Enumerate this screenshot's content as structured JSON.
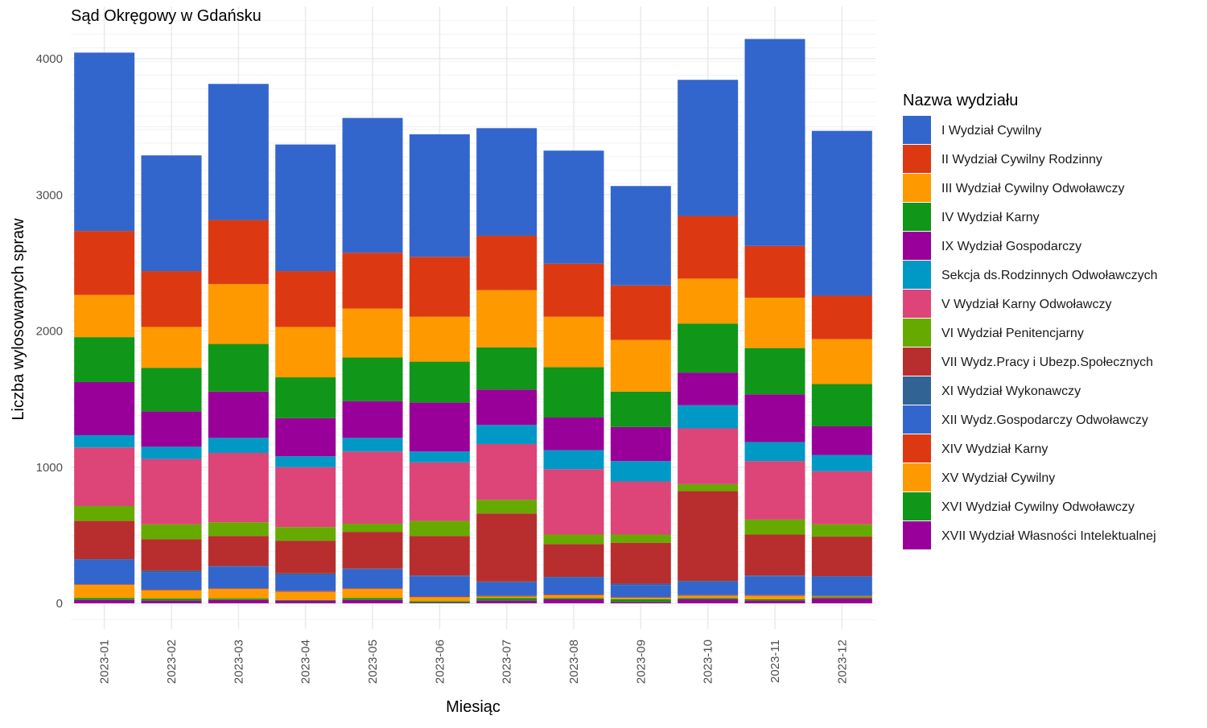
{
  "chart_data": {
    "type": "bar",
    "stacked": true,
    "title": "Sąd Okręgowy w Gdańsku",
    "xlabel": "Miesiąc",
    "ylabel": "Liczba wylosowanych spraw",
    "ylim": [
      -120,
      4300
    ],
    "y_ticks": [
      0,
      1000,
      2000,
      3000,
      4000
    ],
    "y_tick_labels": [
      "0",
      "1000",
      "2000",
      "3000",
      "4000"
    ],
    "grid": true,
    "legend_position": "right",
    "legend_title": "Nazwa wydziału",
    "categories": [
      "2023-01",
      "2023-02",
      "2023-03",
      "2023-04",
      "2023-05",
      "2023-06",
      "2023-07",
      "2023-08",
      "2023-09",
      "2023-10",
      "2023-11",
      "2023-12"
    ],
    "series": [
      {
        "name": "I Wydział Cywilny",
        "color": "#3366CC",
        "values": [
          1310,
          850,
          1000,
          930,
          990,
          900,
          790,
          830,
          730,
          1000,
          1520,
          1210
        ]
      },
      {
        "name": "II Wydział Cywilny Rodzinny",
        "color": "#DC3912",
        "values": [
          470,
          410,
          470,
          410,
          410,
          440,
          400,
          390,
          400,
          460,
          380,
          320
        ]
      },
      {
        "name": "III Wydział Cywilny Odwoławczy",
        "color": "#FF9900",
        "values": [
          310,
          300,
          440,
          370,
          360,
          330,
          420,
          370,
          380,
          330,
          370,
          330
        ]
      },
      {
        "name": "IV Wydział Karny",
        "color": "#109618",
        "values": [
          330,
          320,
          350,
          300,
          320,
          300,
          310,
          370,
          260,
          360,
          340,
          310
        ]
      },
      {
        "name": "IX Wydział Gospodarczy",
        "color": "#990099",
        "values": [
          390,
          260,
          340,
          280,
          270,
          360,
          260,
          240,
          250,
          240,
          350,
          210
        ]
      },
      {
        "name": "Sekcja ds.Rodzinnych Odwoławczych",
        "color": "#0099C6",
        "values": [
          90,
          90,
          110,
          80,
          100,
          80,
          140,
          140,
          150,
          170,
          140,
          120
        ]
      },
      {
        "name": "V Wydział Karny Odwoławczy",
        "color": "#DD4477",
        "values": [
          430,
          480,
          510,
          440,
          530,
          430,
          410,
          480,
          390,
          410,
          430,
          390
        ]
      },
      {
        "name": "VI Wydział Penitencjarny",
        "color": "#66AA00",
        "values": [
          110,
          110,
          100,
          100,
          60,
          110,
          100,
          70,
          60,
          50,
          110,
          90
        ]
      },
      {
        "name": "VII Wydz.Pracy i Ubezp.Społecznych",
        "color": "#B82E2E",
        "values": [
          280,
          230,
          220,
          240,
          270,
          290,
          500,
          240,
          300,
          660,
          300,
          290
        ]
      },
      {
        "name": "XI Wydział Wykonawczy",
        "color": "#316395",
        "values": [
          5,
          10,
          5,
          10,
          5,
          5,
          5,
          5,
          10,
          5,
          5,
          5
        ]
      },
      {
        "name": "XII Wydz.Gospodarczy Odwoławczy",
        "color": "#3366CC",
        "values": [
          180,
          130,
          160,
          120,
          140,
          150,
          100,
          125,
          90,
          100,
          140,
          140
        ]
      },
      {
        "name": "XIV Wydział Karny",
        "color": "#DC3912",
        "values": [
          5,
          5,
          5,
          5,
          5,
          5,
          5,
          5,
          5,
          5,
          5,
          5
        ]
      },
      {
        "name": "XV Wydział Cywilny",
        "color": "#FF9900",
        "values": [
          95,
          60,
          70,
          60,
          65,
          30,
          10,
          20,
          10,
          15,
          25,
          5
        ]
      },
      {
        "name": "XVI Wydział Cywilny Odwoławczy",
        "color": "#109618",
        "values": [
          15,
          15,
          10,
          5,
          15,
          10,
          20,
          10,
          20,
          10,
          10,
          10
        ]
      },
      {
        "name": "XVII Wydział Własności Intelektualnej",
        "color": "#990099",
        "values": [
          25,
          20,
          25,
          20,
          25,
          5,
          20,
          30,
          10,
          30,
          20,
          35
        ]
      }
    ]
  }
}
